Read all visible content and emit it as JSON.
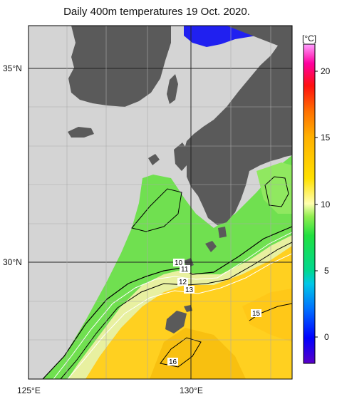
{
  "title": "Daily 400m temperatures 19 Oct. 2020.",
  "axes": {
    "lat_labels": [
      "35°N",
      "30°N"
    ],
    "lon_labels": [
      "125°E",
      "130°E"
    ]
  },
  "colorbar": {
    "unit": "[°C]",
    "ticks": [
      "0",
      "5",
      "10",
      "15",
      "20"
    ],
    "range": [
      -2,
      22
    ],
    "stops": [
      "#5a00c8",
      "#0000ff",
      "#0070ff",
      "#00c8e6",
      "#00d890",
      "#20e040",
      "#90ee50",
      "#ffffb0",
      "#ffe000",
      "#ffb000",
      "#ff7000",
      "#ff1010",
      "#ff00a0",
      "#ffa0ff"
    ]
  },
  "contours": [
    "10",
    "11",
    "12",
    "13",
    "15",
    "16"
  ],
  "colors": {
    "land": "#5a5a5a",
    "nodata": "#d4d4d4",
    "cold": "#70e050",
    "warm": "#ffd020",
    "grid": "#222222"
  }
}
